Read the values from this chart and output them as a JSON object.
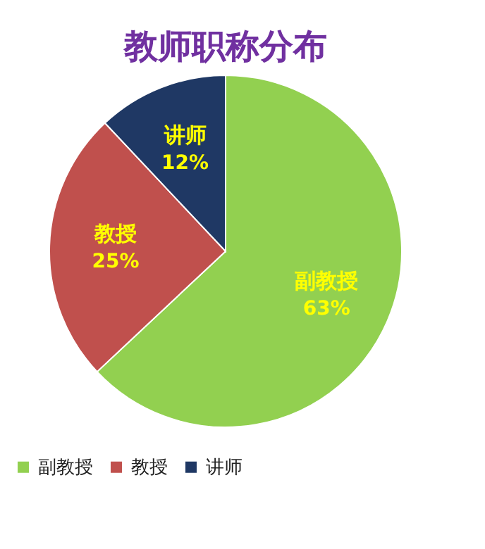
{
  "chart_data": {
    "type": "pie",
    "title": "教师职称分布",
    "categories": [
      "副教授",
      "教授",
      "讲师"
    ],
    "values": [
      63,
      25,
      12
    ],
    "colors": [
      "#92d050",
      "#c0504d",
      "#1f3864"
    ],
    "value_labels": [
      "63%",
      "25%",
      "12%"
    ],
    "legend": "bottom"
  }
}
